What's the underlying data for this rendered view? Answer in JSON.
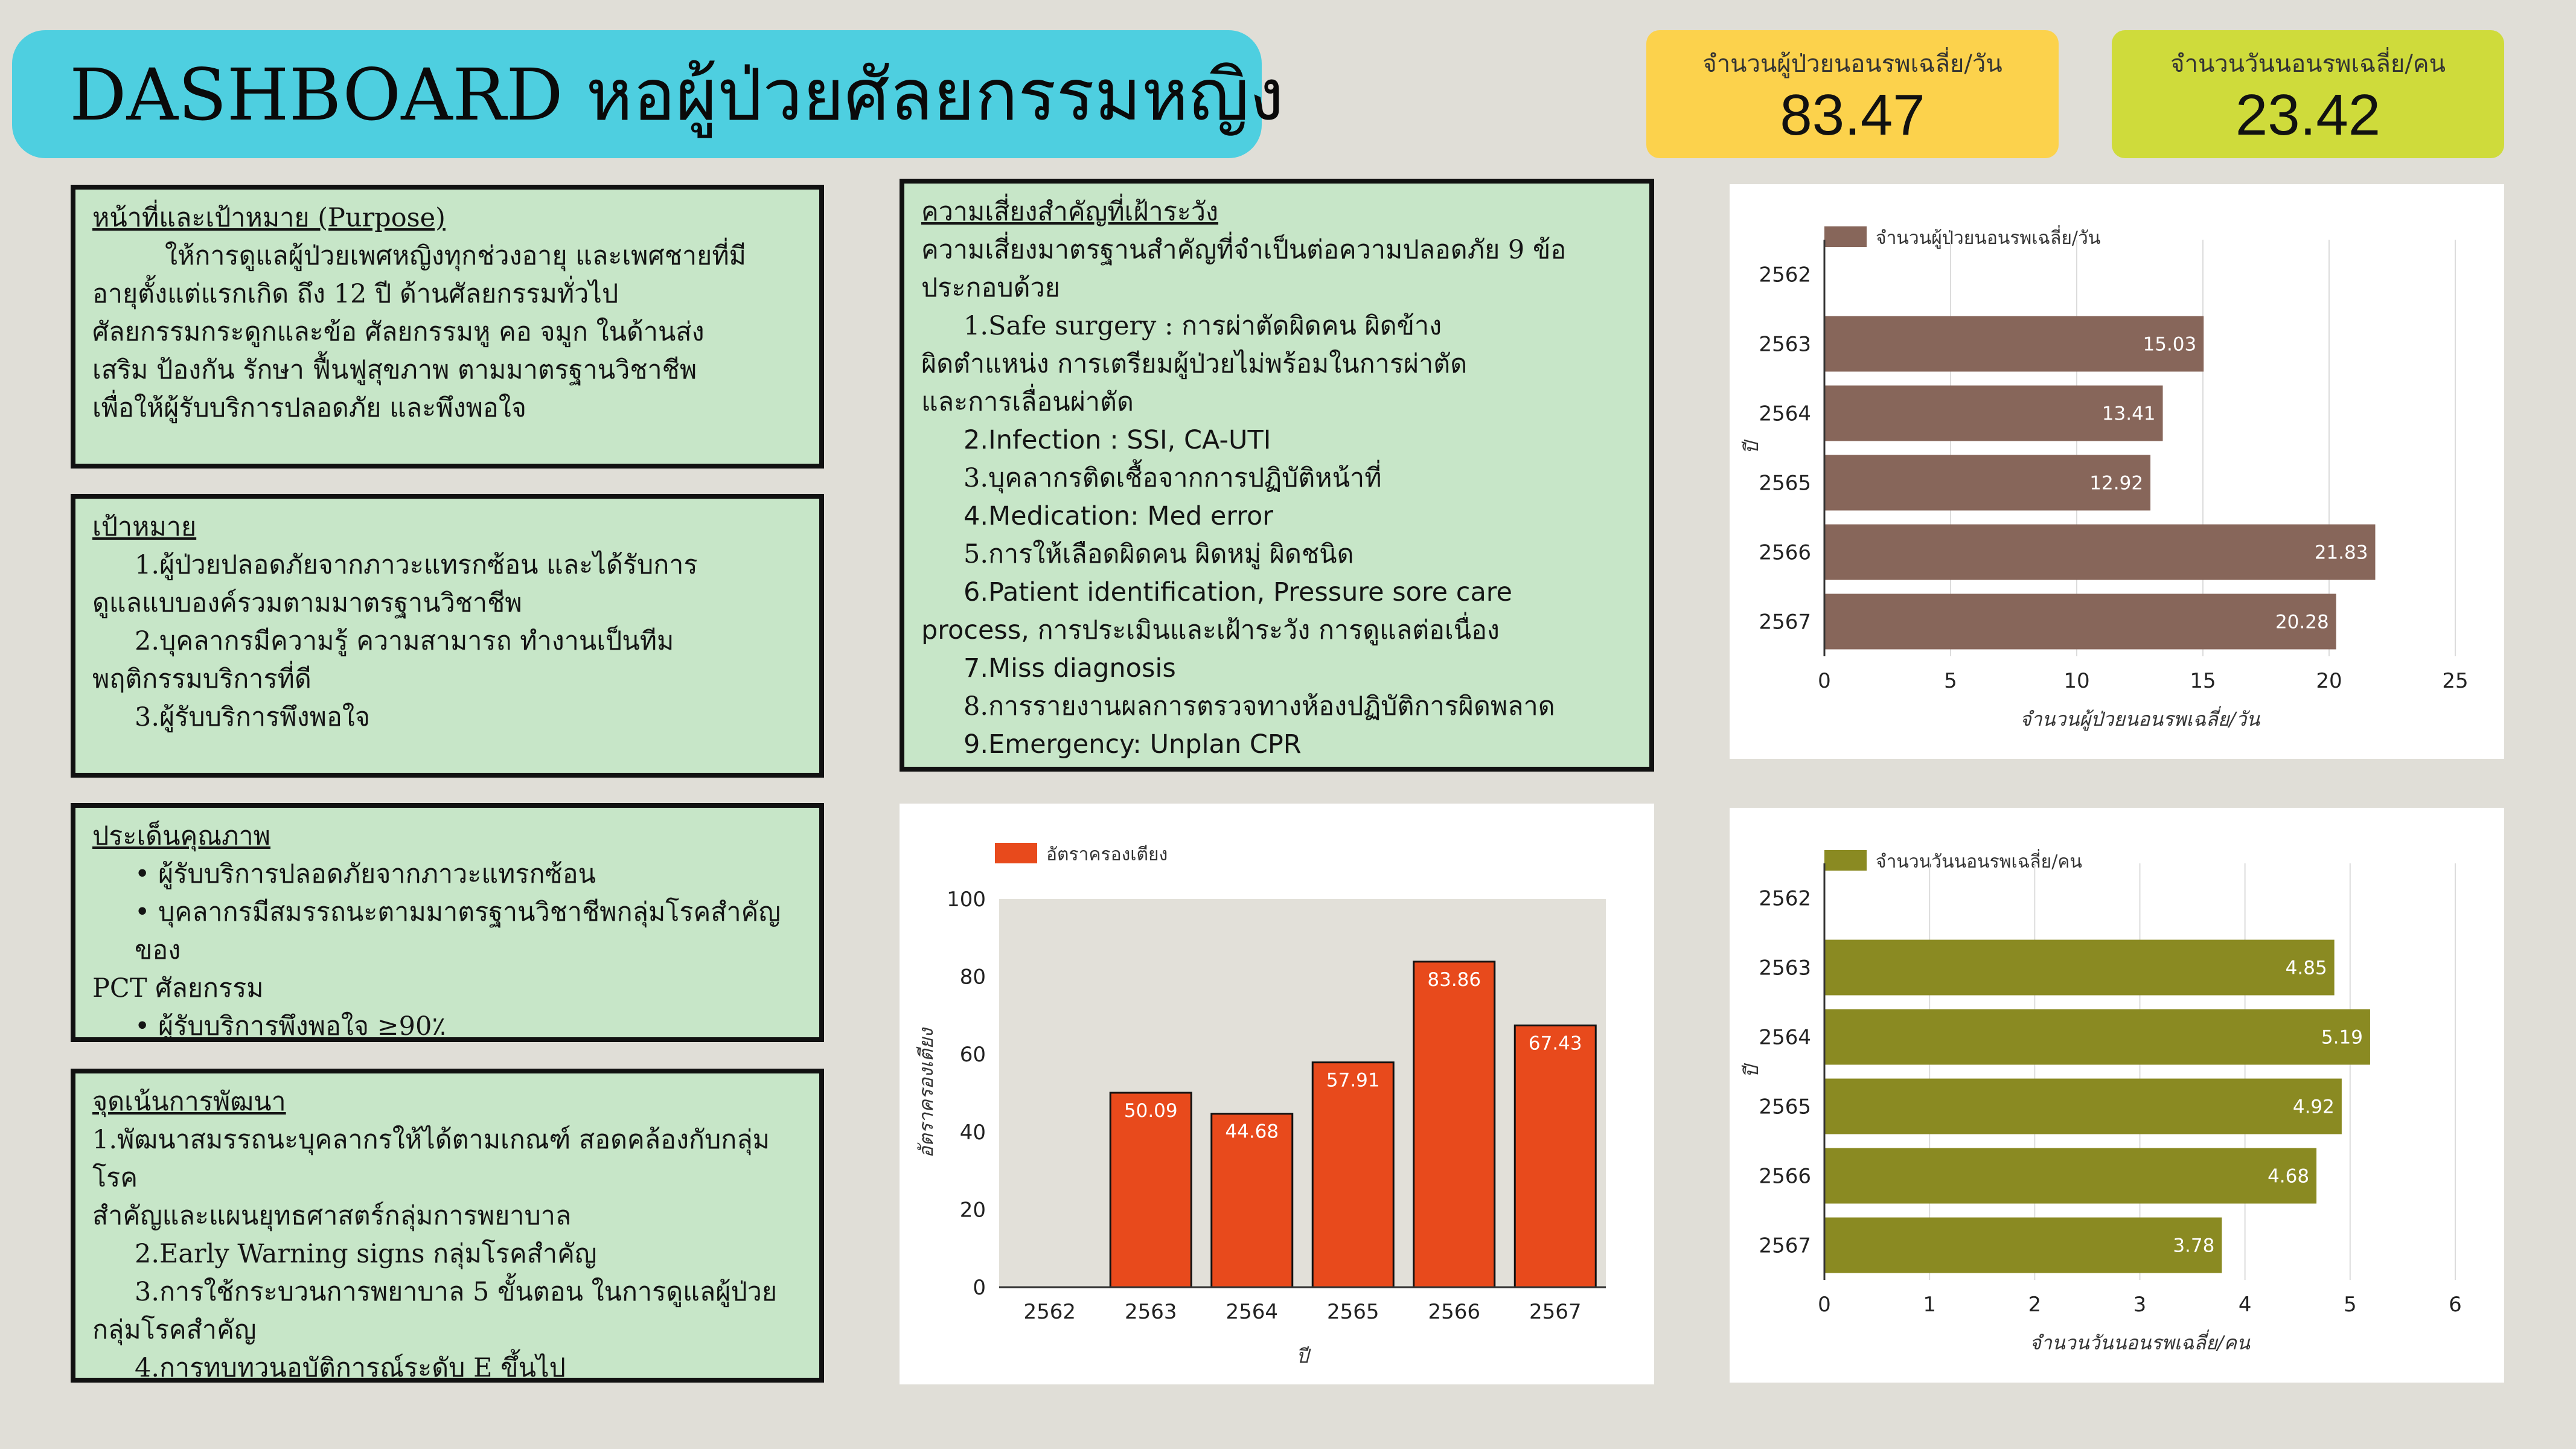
{
  "header": {
    "title": "DASHBOARD หอผู้ป่วยศัลยกรรมหญิง"
  },
  "kpis": [
    {
      "label": "จำนวนผู้ป่วยนอนรพเฉลี่ย/วัน",
      "value": "83.47",
      "color": "#fcd24c"
    },
    {
      "label": "จำนวนวันนอนรพเฉลี่ย/คน",
      "value": "23.42",
      "color": "#cfdb3b"
    }
  ],
  "purpose": {
    "heading": "หน้าที่และเป้าหมาย (Purpose)",
    "lines": [
      "ให้การดูแลผู้ป่วยเพศหญิงทุกช่วงอายุ และเพศชายที่มี",
      "อายุตั้งแต่แรกเกิด ถึง 12 ปี ด้านศัลยกรรมทั่วไป",
      "ศัลยกรรมกระดูกและข้อ ศัลยกรรมหู คอ จมูก ในด้านส่ง",
      "เสริม ป้องกัน รักษา ฟื้นฟูสุขภาพ ตามมาตรฐานวิชาชีพ",
      "เพื่อให้ผู้รับบริการปลอดภัย และพึงพอใจ"
    ]
  },
  "goals": {
    "heading": "เป้าหมาย",
    "lines": [
      "1.ผู้ป่วยปลอดภัยจากภาวะแทรกซ้อน และได้รับการ",
      "ดูแลแบบองค์รวมตามมาตรฐานวิชาชีพ",
      "2.บุคลากรมีความรู้ ความสามารถ ทำงานเป็นทีม",
      "พฤติกรรมบริการที่ดี",
      "3.ผู้รับบริการพึงพอใจ"
    ]
  },
  "quality": {
    "heading": "ประเด็นคุณภาพ",
    "lines": [
      "• ผู้รับบริการปลอดภัยจากภาวะแทรกซ้อน",
      "• บุคลากรมีสมรรถนะตามมาตรฐานวิชาชีพกลุ่มโรคสำคัญของ",
      "PCT ศัลยกรรม",
      "• ผู้รับบริการพึงพอใจ ≥90٪"
    ]
  },
  "development": {
    "heading": "จุดเน้นการพัฒนา",
    "lines": [
      "1.พัฒนาสมรรถนะบุคลากรให้ได้ตามเกณฑ์ สอดคล้องกับกลุ่มโรค",
      "สำคัญและแผนยุทธศาสตร์กลุ่มการพยาบาล",
      "2.Early Warning signs กลุ่มโรคสำคัญ",
      "3.การใช้กระบวนการพยาบาล 5 ขั้นตอน ในการดูแลผู้ป่วย",
      "กลุ่มโรคสำคัญ",
      "4.การทบทวนอุบัติการณ์ระดับ E ขึ้นไป"
    ]
  },
  "risks": {
    "heading": "ความเสี่ยงสำคัญที่เฝ้าระวัง",
    "lines": [
      "ความเสี่ยงมาตรฐานสำคัญที่จำเป็นต่อความปลอดภัย 9 ข้อ",
      "ประกอบด้วย",
      "1.Safe surgery : การผ่าตัดผิดคน ผิดข้าง",
      "ผิดตำแหน่ง การเตรียมผู้ป่วยไม่พร้อมในการผ่าตัด",
      "และการเลื่อนผ่าตัด",
      "2.Infection : SSI, CA-UTI",
      "3.บุคลากรติดเชื้อจากการปฏิบัติหน้าที่",
      "4.Medication: Med error",
      "5.การให้เลือดผิดคน ผิดหมู่ ผิดชนิด",
      "6.Patient identification, Pressure sore care",
      "process, การประเมินและเฝ้าระวัง การดูแลต่อเนื่อง",
      "7.Miss diagnosis",
      "8.การรายงานผลการตรวจทางห้องปฏิบัติการผิดพลาด",
      "9.Emergency: Unplan CPR"
    ]
  },
  "chart_data": [
    {
      "id": "admissions",
      "type": "bar",
      "orientation": "horizontal",
      "categories": [
        "2562",
        "2563",
        "2564",
        "2565",
        "2566",
        "2567"
      ],
      "series": [
        {
          "name": "จำนวนผู้ป่วยนอนรพเฉลี่ย/วัน",
          "values": [
            null,
            15.03,
            13.41,
            12.92,
            21.83,
            20.28
          ],
          "color": "#87665a"
        }
      ],
      "data_labels": [
        "",
        "15.03",
        "13.41",
        "12.92",
        "21.83",
        "20.28"
      ],
      "xlabel": "จำนวนผู้ป่วยนอนรพเฉลี่ย/วัน",
      "ylabel": "ปี",
      "xlim": [
        0,
        25
      ],
      "xticks": [
        0,
        5,
        10,
        15,
        20,
        25
      ],
      "grid": true,
      "legend": "top-left"
    },
    {
      "id": "occupancy",
      "type": "bar",
      "orientation": "vertical",
      "categories": [
        "2562",
        "2563",
        "2564",
        "2565",
        "2566",
        "2567"
      ],
      "series": [
        {
          "name": "อัตราครองเตียง",
          "values": [
            null,
            50.09,
            44.68,
            57.91,
            83.86,
            67.43
          ],
          "color": "#e84a1c"
        }
      ],
      "data_labels": [
        "",
        "50.09",
        "44.68",
        "57.91",
        "83.86",
        "67.43"
      ],
      "xlabel": "ปี",
      "ylabel": "อัตราครองเตียง",
      "ylim": [
        0,
        100
      ],
      "yticks": [
        0,
        20,
        40,
        60,
        80,
        100
      ],
      "grid": false,
      "legend": "top-left"
    },
    {
      "id": "los",
      "type": "bar",
      "orientation": "horizontal",
      "categories": [
        "2562",
        "2563",
        "2564",
        "2565",
        "2566",
        "2567"
      ],
      "series": [
        {
          "name": "จำนวนวันนอนรพเฉลี่ย/คน",
          "values": [
            null,
            4.85,
            5.19,
            4.92,
            4.68,
            3.78
          ],
          "color": "#8a8a22"
        }
      ],
      "data_labels": [
        "",
        "4.85",
        "5.19",
        "4.92",
        "4.68",
        "3.78"
      ],
      "xlabel": "จำนวนวันนอนรพเฉลี่ย/คน",
      "ylabel": "ปี",
      "xlim": [
        0,
        6
      ],
      "xticks": [
        0,
        1,
        2,
        3,
        4,
        5,
        6
      ],
      "grid": true,
      "legend": "top-left"
    }
  ]
}
